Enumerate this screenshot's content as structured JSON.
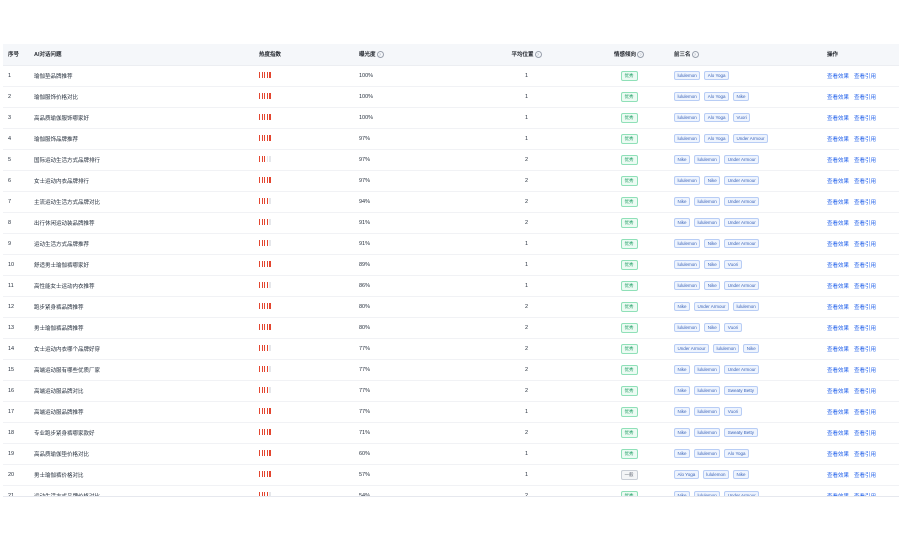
{
  "table": {
    "headers": {
      "index": "序号",
      "question": "AI对话问题",
      "heat": "热度指数",
      "exposure": "曝光度",
      "avg_position": "平均位置",
      "sentiment": "情感倾向",
      "top3": "前三名",
      "actions": "操作"
    },
    "help_glyph": "?",
    "action_labels": {
      "view_result": "查看效果",
      "view_citation": "查看引用"
    },
    "rows": [
      {
        "index": "1",
        "question": "瑜伽垫品牌推荐",
        "heat_level": 5,
        "exposure": "100%",
        "avg_position": "1",
        "sentiment": "优秀",
        "top3": [
          "lululemon",
          "Alo Yoga"
        ]
      },
      {
        "index": "2",
        "question": "瑜伽服饰价格对比",
        "heat_level": 5,
        "exposure": "100%",
        "avg_position": "1",
        "sentiment": "优秀",
        "top3": [
          "lululemon",
          "Alo Yoga",
          "Nike"
        ]
      },
      {
        "index": "3",
        "question": "高品质瑜伽服饰哪家好",
        "heat_level": 5,
        "exposure": "100%",
        "avg_position": "1",
        "sentiment": "优秀",
        "top3": [
          "lululemon",
          "Alo Yoga",
          "Vuori"
        ]
      },
      {
        "index": "4",
        "question": "瑜伽服饰品牌推荐",
        "heat_level": 5,
        "exposure": "97%",
        "avg_position": "1",
        "sentiment": "优秀",
        "top3": [
          "lululemon",
          "Alo Yoga",
          "Under Armour"
        ]
      },
      {
        "index": "5",
        "question": "国际运动生活方式品牌排行",
        "heat_level": 3,
        "exposure": "97%",
        "avg_position": "2",
        "sentiment": "优秀",
        "top3": [
          "Nike",
          "lululemon",
          "Under Armour"
        ]
      },
      {
        "index": "6",
        "question": "女士运动内衣品牌排行",
        "heat_level": 5,
        "exposure": "97%",
        "avg_position": "2",
        "sentiment": "优秀",
        "top3": [
          "lululemon",
          "Nike",
          "Under Armour"
        ]
      },
      {
        "index": "7",
        "question": "主流运动生活方式品牌对比",
        "heat_level": 4,
        "exposure": "94%",
        "avg_position": "2",
        "sentiment": "优秀",
        "top3": [
          "Nike",
          "lululemon",
          "Under Armour"
        ]
      },
      {
        "index": "8",
        "question": "出行休闲运动装品牌推荐",
        "heat_level": 4,
        "exposure": "91%",
        "avg_position": "2",
        "sentiment": "优秀",
        "top3": [
          "Nike",
          "lululemon",
          "Under Armour"
        ]
      },
      {
        "index": "9",
        "question": "运动生活方式品牌推荐",
        "heat_level": 4,
        "exposure": "91%",
        "avg_position": "1",
        "sentiment": "优秀",
        "top3": [
          "lululemon",
          "Nike",
          "Under Armour"
        ]
      },
      {
        "index": "10",
        "question": "舒适男士瑜伽裤哪家好",
        "heat_level": 5,
        "exposure": "89%",
        "avg_position": "1",
        "sentiment": "优秀",
        "top3": [
          "lululemon",
          "Nike",
          "Vuori"
        ]
      },
      {
        "index": "11",
        "question": "高性能女士运动内衣推荐",
        "heat_level": 4,
        "exposure": "86%",
        "avg_position": "1",
        "sentiment": "优秀",
        "top3": [
          "lululemon",
          "Nike",
          "Under Armour"
        ]
      },
      {
        "index": "12",
        "question": "跑步紧身裤品牌推荐",
        "heat_level": 5,
        "exposure": "80%",
        "avg_position": "2",
        "sentiment": "优秀",
        "top3": [
          "Nike",
          "Under Armour",
          "lululemon"
        ]
      },
      {
        "index": "13",
        "question": "男士瑜伽裤品牌推荐",
        "heat_level": 5,
        "exposure": "80%",
        "avg_position": "2",
        "sentiment": "优秀",
        "top3": [
          "lululemon",
          "Nike",
          "Vuori"
        ]
      },
      {
        "index": "14",
        "question": "女士运动内衣哪个品牌好穿",
        "heat_level": 4,
        "exposure": "77%",
        "avg_position": "2",
        "sentiment": "优秀",
        "top3": [
          "Under Armour",
          "lululemon",
          "Nike"
        ]
      },
      {
        "index": "15",
        "question": "高端运动服有哪些优质厂家",
        "heat_level": 4,
        "exposure": "77%",
        "avg_position": "2",
        "sentiment": "优秀",
        "top3": [
          "Nike",
          "lululemon",
          "Under Armour"
        ]
      },
      {
        "index": "16",
        "question": "高端运动服品牌对比",
        "heat_level": 4,
        "exposure": "77%",
        "avg_position": "2",
        "sentiment": "优秀",
        "top3": [
          "Nike",
          "lululemon",
          "Sweaty Betty"
        ]
      },
      {
        "index": "17",
        "question": "高端运动服品牌推荐",
        "heat_level": 5,
        "exposure": "77%",
        "avg_position": "1",
        "sentiment": "优秀",
        "top3": [
          "Nike",
          "lululemon",
          "Vuori"
        ]
      },
      {
        "index": "18",
        "question": "专业跑步紧身裤哪家款好",
        "heat_level": 5,
        "exposure": "71%",
        "avg_position": "2",
        "sentiment": "优秀",
        "top3": [
          "Nike",
          "lululemon",
          "Sweaty Betty"
        ]
      },
      {
        "index": "19",
        "question": "高品质瑜伽垫价格对比",
        "heat_level": 5,
        "exposure": "60%",
        "avg_position": "1",
        "sentiment": "优秀",
        "top3": [
          "Nike",
          "lululemon",
          "Alo Yoga"
        ]
      },
      {
        "index": "20",
        "question": "男士瑜伽裤价格对比",
        "heat_level": 5,
        "exposure": "57%",
        "avg_position": "1",
        "sentiment": "一般",
        "top3": [
          "Alo Yoga",
          "lululemon",
          "Nike"
        ]
      },
      {
        "index": "21",
        "question": "运动生活方式品牌价格对比",
        "heat_level": 4,
        "exposure": "54%",
        "avg_position": "2",
        "sentiment": "优秀",
        "top3": [
          "Nike",
          "lululemon",
          "Under Armour"
        ]
      }
    ]
  }
}
